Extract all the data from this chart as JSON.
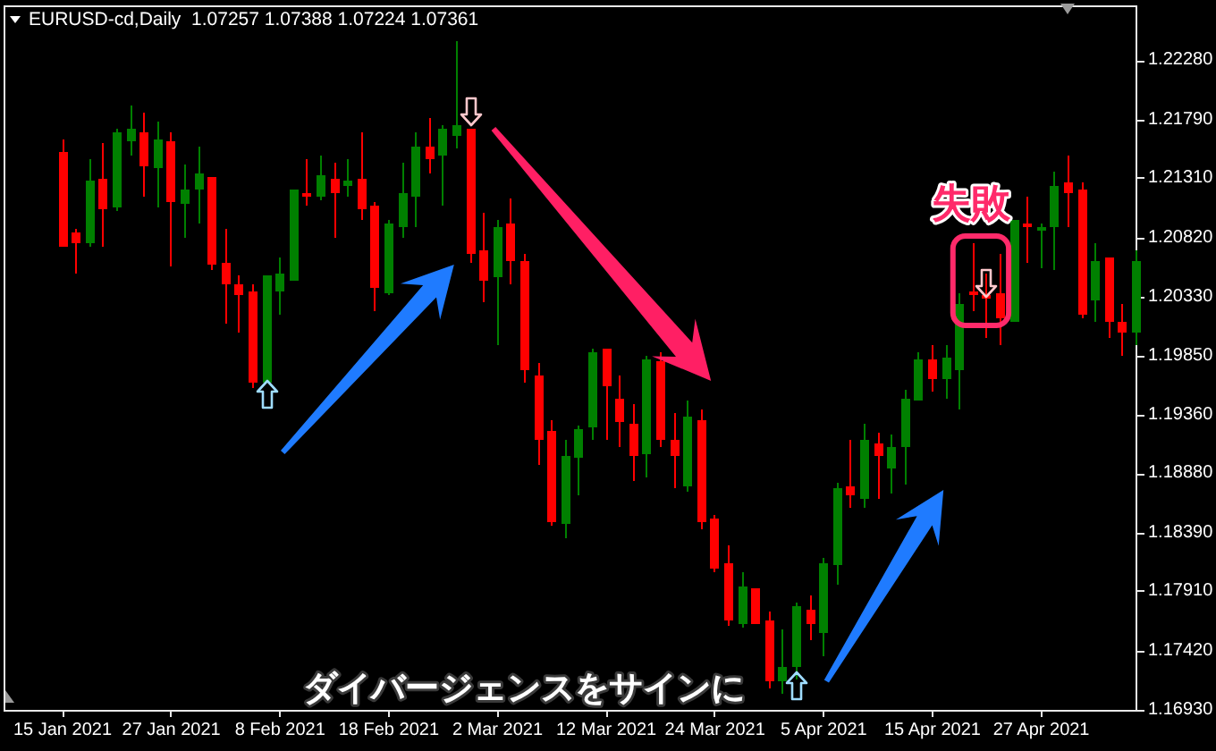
{
  "chart_data": {
    "type": "candlestick",
    "title": "EURUSD-cd,Daily  1.07257 1.07388 1.07224 1.07361",
    "categories": [
      "15 Jan 2021",
      null,
      null,
      null,
      null,
      null,
      null,
      null,
      "27 Jan 2021",
      null,
      null,
      null,
      null,
      null,
      null,
      null,
      "8 Feb 2021",
      null,
      null,
      null,
      null,
      null,
      null,
      null,
      "18 Feb 2021",
      null,
      null,
      null,
      null,
      null,
      null,
      null,
      "2 Mar 2021",
      null,
      null,
      null,
      null,
      null,
      null,
      null,
      "12 Mar 2021",
      null,
      null,
      null,
      null,
      null,
      null,
      null,
      "24 Mar 2021",
      null,
      null,
      null,
      null,
      null,
      null,
      null,
      "5 Apr 2021",
      null,
      null,
      null,
      null,
      null,
      null,
      null,
      "15 Apr 2021",
      null,
      null,
      null,
      null,
      null,
      null,
      null,
      "27 Apr 2021",
      null,
      null,
      null,
      null,
      null,
      null,
      null
    ],
    "ohlc": [
      [
        1.2153,
        1.2162,
        1.2075,
        1.2075
      ],
      [
        1.2086,
        1.2089,
        1.2052,
        1.2077
      ],
      [
        1.2077,
        1.2146,
        1.2074,
        1.2128
      ],
      [
        1.213,
        1.2159,
        1.2075,
        1.2105
      ],
      [
        1.2106,
        1.2172,
        1.2103,
        1.2169
      ],
      [
        1.2161,
        1.219,
        1.215,
        1.2171
      ],
      [
        1.2168,
        1.2184,
        1.2115,
        1.214
      ],
      [
        1.2139,
        1.2177,
        1.2106,
        1.2162
      ],
      [
        1.2161,
        1.2169,
        1.2058,
        1.2111
      ],
      [
        1.2109,
        1.2142,
        1.2081,
        1.2122
      ],
      [
        1.2121,
        1.2156,
        1.2094,
        1.2134
      ],
      [
        1.2131,
        1.2131,
        1.2055,
        1.2059
      ],
      [
        1.2061,
        1.2089,
        1.2011,
        1.2043
      ],
      [
        1.2044,
        1.205,
        1.2003,
        1.2034
      ],
      [
        1.2037,
        1.2043,
        1.1958,
        1.1963
      ],
      [
        1.1963,
        1.205,
        1.1963,
        1.205
      ],
      [
        1.2037,
        1.2066,
        1.2018,
        1.2052
      ],
      [
        1.2047,
        1.2121,
        1.2047,
        1.2121
      ],
      [
        1.2119,
        1.2146,
        1.2108,
        1.2116
      ],
      [
        1.2116,
        1.215,
        1.2112,
        1.2133
      ],
      [
        1.213,
        1.2143,
        1.2081,
        1.2119
      ],
      [
        1.2124,
        1.2146,
        1.2116,
        1.2128
      ],
      [
        1.213,
        1.2169,
        1.2096,
        1.2105
      ],
      [
        1.2108,
        1.2111,
        1.2022,
        1.204
      ],
      [
        1.2036,
        1.2096,
        1.2034,
        1.2093
      ],
      [
        1.209,
        1.2144,
        1.2081,
        1.2118
      ],
      [
        1.2116,
        1.2169,
        1.209,
        1.2156
      ],
      [
        1.2156,
        1.218,
        1.2134,
        1.2147
      ],
      [
        1.2149,
        1.2175,
        1.2108,
        1.2171
      ],
      [
        1.2165,
        1.2243,
        1.2155,
        1.2174
      ],
      [
        1.2172,
        1.2172,
        1.2061,
        1.2069
      ],
      [
        1.2071,
        1.2102,
        1.2028,
        1.2047
      ],
      [
        1.2049,
        1.2096,
        1.1993,
        1.209
      ],
      [
        1.2093,
        1.2114,
        1.2043,
        1.2062
      ],
      [
        1.2063,
        1.2068,
        1.1962,
        1.1972
      ],
      [
        1.1969,
        1.1978,
        1.1894,
        1.1915
      ],
      [
        1.1922,
        1.1932,
        1.1844,
        1.1847
      ],
      [
        1.1846,
        1.1916,
        1.1835,
        1.1902
      ],
      [
        1.19,
        1.1927,
        1.1869,
        1.1924
      ],
      [
        1.1925,
        1.1991,
        1.1916,
        1.1988
      ],
      [
        1.199,
        1.199,
        1.1916,
        1.1959
      ],
      [
        1.1949,
        1.1968,
        1.191,
        1.193
      ],
      [
        1.1928,
        1.1944,
        1.1882,
        1.1902
      ],
      [
        1.1904,
        1.1985,
        1.1885,
        1.1981
      ],
      [
        1.198,
        1.1988,
        1.191,
        1.1916
      ],
      [
        1.1916,
        1.1937,
        1.1875,
        1.1902
      ],
      [
        1.1877,
        1.1947,
        1.1872,
        1.1935
      ],
      [
        1.1932,
        1.1941,
        1.1841,
        1.1847
      ],
      [
        1.185,
        1.1854,
        1.1807,
        1.1809
      ],
      [
        1.1813,
        1.1828,
        1.1762,
        1.1766
      ],
      [
        1.1763,
        1.1807,
        1.176,
        1.1794
      ],
      [
        1.1793,
        1.1793,
        1.1763,
        1.1763
      ],
      [
        1.1766,
        1.1774,
        1.171,
        1.1716
      ],
      [
        1.1716,
        1.1759,
        1.1706,
        1.1729
      ],
      [
        1.1729,
        1.1781,
        1.1718,
        1.1778
      ],
      [
        1.1775,
        1.1787,
        1.175,
        1.1763
      ],
      [
        1.1756,
        1.1818,
        1.1737,
        1.1813
      ],
      [
        1.1812,
        1.188,
        1.1796,
        1.1875
      ],
      [
        1.1877,
        1.1915,
        1.186,
        1.1869
      ],
      [
        1.1866,
        1.1928,
        1.186,
        1.1916
      ],
      [
        1.1913,
        1.1921,
        1.1866,
        1.1902
      ],
      [
        1.1891,
        1.1919,
        1.1871,
        1.191
      ],
      [
        1.1909,
        1.1956,
        1.1878,
        1.1949
      ],
      [
        1.1947,
        1.1987,
        1.1947,
        1.1981
      ],
      [
        1.1981,
        1.1994,
        1.1955,
        1.1965
      ],
      [
        1.1965,
        1.1994,
        1.1949,
        1.1983
      ],
      [
        1.1972,
        1.2036,
        1.1941,
        1.2027
      ],
      [
        1.2038,
        1.2077,
        1.2022,
        1.2034
      ],
      [
        1.2034,
        1.2052,
        1.1999,
        1.2031
      ],
      [
        1.2036,
        1.2069,
        1.1993,
        1.2016
      ],
      [
        1.2013,
        1.2096,
        1.2013,
        1.2096
      ],
      [
        1.2093,
        1.2116,
        1.2061,
        1.2091
      ],
      [
        1.2087,
        1.2093,
        1.2056,
        1.2091
      ],
      [
        1.209,
        1.2136,
        1.2055,
        1.2124
      ],
      [
        1.2127,
        1.215,
        1.209,
        1.2119
      ],
      [
        1.2122,
        1.2127,
        1.2015,
        1.2018
      ],
      [
        1.203,
        1.2077,
        1.2012,
        1.2063
      ],
      [
        1.2066,
        1.2066,
        1.1999,
        1.2013
      ],
      [
        1.2013,
        1.2027,
        1.1985,
        1.2003
      ],
      [
        1.2003,
        1.2072,
        1.1993,
        1.2063
      ]
    ],
    "colors": [
      "#ff0000",
      "#ff0000",
      "#008000",
      "#ff0000",
      "#008000",
      "#008000",
      "#ff0000",
      "#008000",
      "#ff0000",
      "#008000",
      "#008000",
      "#ff0000",
      "#ff0000",
      "#ff0000",
      "#ff0000",
      "#008000",
      "#008000",
      "#008000",
      "#ff0000",
      "#008000",
      "#ff0000",
      "#008000",
      "#ff0000",
      "#ff0000",
      "#008000",
      "#008000",
      "#008000",
      "#ff0000",
      "#008000",
      "#008000",
      "#ff0000",
      "#ff0000",
      "#008000",
      "#ff0000",
      "#ff0000",
      "#ff0000",
      "#ff0000",
      "#008000",
      "#008000",
      "#008000",
      "#ff0000",
      "#ff0000",
      "#ff0000",
      "#008000",
      "#ff0000",
      "#ff0000",
      "#008000",
      "#ff0000",
      "#ff0000",
      "#ff0000",
      "#008000",
      "#ff0000",
      "#ff0000",
      "#008000",
      "#008000",
      "#ff0000",
      "#008000",
      "#008000",
      "#ff0000",
      "#008000",
      "#ff0000",
      "#008000",
      "#008000",
      "#008000",
      "#ff0000",
      "#008000",
      "#008000",
      "#ff0000",
      "#ff0000",
      "#ff0000",
      "#008000",
      "#ff0000",
      "#008000",
      "#008000",
      "#ff0000",
      "#ff0000",
      "#008000",
      "#ff0000",
      "#ff0000",
      "#008000"
    ],
    "ylim": [
      1.1693,
      1.2273
    ],
    "yticks": [
      {
        "value": 1.2228,
        "label": "1.22280"
      },
      {
        "value": 1.2179,
        "label": "1.21790"
      },
      {
        "value": 1.2131,
        "label": "1.21310"
      },
      {
        "value": 1.2082,
        "label": "1.20820"
      },
      {
        "value": 1.2033,
        "label": "1.20330"
      },
      {
        "value": 1.1985,
        "label": "1.19850"
      },
      {
        "value": 1.1936,
        "label": "1.19360"
      },
      {
        "value": 1.1888,
        "label": "1.18880"
      },
      {
        "value": 1.1839,
        "label": "1.18390"
      },
      {
        "value": 1.1791,
        "label": "1.17910"
      },
      {
        "value": 1.1742,
        "label": "1.17420"
      },
      {
        "value": 1.1693,
        "label": "1.16930"
      }
    ],
    "annotations": [
      "失敗",
      "ダイバージェンスをサインに"
    ]
  }
}
